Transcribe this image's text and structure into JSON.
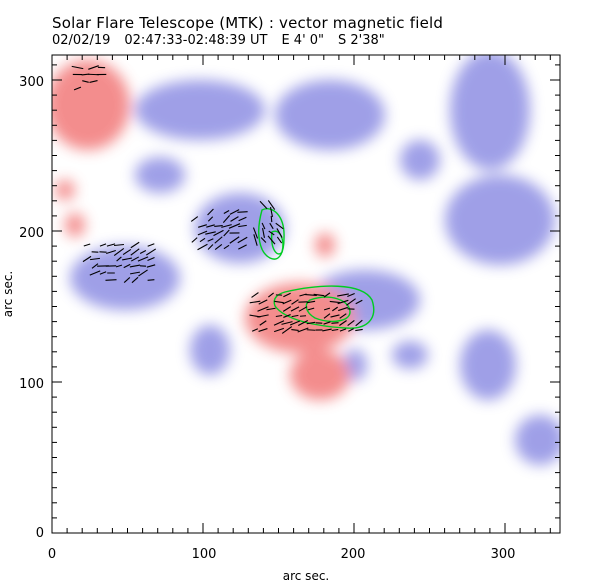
{
  "title": "Solar Flare Telescope (MTK) : vector magnetic field",
  "subtitle": {
    "date": "02/02/19",
    "time_range": "02:47:33-02:48:39 UT",
    "longitude": "E 4' 0\"",
    "latitude": "S 2'38\""
  },
  "axes": {
    "xlabel": "arc sec.",
    "ylabel": "arc sec.",
    "xlim": [
      0,
      340
    ],
    "ylim": [
      0,
      320
    ],
    "xticks": [
      "0",
      "100",
      "200",
      "300"
    ],
    "yticks": [
      "0",
      "100",
      "200",
      "300"
    ]
  },
  "colors": {
    "positive_field": "#f07070",
    "negative_field": "#7f80e0",
    "contour": "#00cc22",
    "vectors": "#000000"
  }
}
